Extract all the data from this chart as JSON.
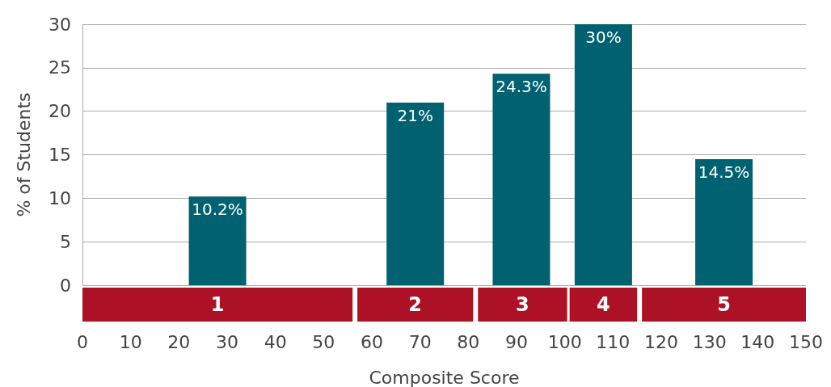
{
  "chart_data": [
    {
      "type": "bar",
      "ylabel": "% of Students",
      "x": [
        28,
        69,
        91,
        108,
        133
      ],
      "values": [
        10.2,
        21,
        24.3,
        30,
        14.5
      ],
      "value_labels": [
        "10.2%",
        "21%",
        "24.3%",
        "30%",
        "14.5%"
      ],
      "color": "#006170",
      "xlim": [
        0,
        150
      ],
      "ylim": [
        0,
        30
      ],
      "yticks": [
        0,
        5,
        10,
        15,
        20,
        25,
        30
      ],
      "grid": "y",
      "tick_labels": "y"
    },
    {
      "type": "bar",
      "orientation": "horizontal",
      "xlabel": "Composite Score",
      "categories": [
        null
      ],
      "series": [
        {
          "name": "1",
          "color": "#ad1126",
          "base": [
            0
          ],
          "values": [
            56
          ]
        },
        {
          "name": "2",
          "color": "#ad1126",
          "base": [
            57
          ],
          "values": [
            24
          ]
        },
        {
          "name": "3",
          "color": "#ad1126",
          "base": [
            82
          ],
          "values": [
            18.5
          ]
        },
        {
          "name": "4",
          "color": "#ad1126",
          "base": [
            101
          ],
          "values": [
            14
          ]
        },
        {
          "name": "5",
          "color": "#ad1126",
          "base": [
            116
          ],
          "values": [
            34
          ]
        }
      ],
      "xlim": [
        0,
        150
      ],
      "xticks": [
        0,
        10,
        20,
        30,
        40,
        50,
        60,
        70,
        80,
        90,
        100,
        110,
        120,
        130,
        140,
        150
      ],
      "tick_labels": "x"
    }
  ]
}
